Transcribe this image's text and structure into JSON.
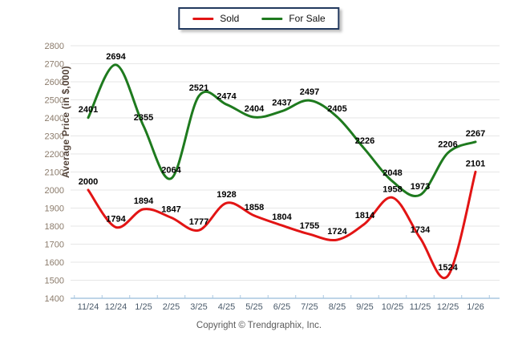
{
  "chart_data": {
    "type": "line",
    "title": "",
    "categories": [
      "11/24",
      "12/24",
      "1/25",
      "2/25",
      "3/25",
      "4/25",
      "5/25",
      "6/25",
      "7/25",
      "8/25",
      "9/25",
      "10/25",
      "11/25",
      "12/25",
      "1/26"
    ],
    "series": [
      {
        "name": "Sold",
        "color": "#e21414",
        "values": [
          2000,
          1794,
          1894,
          1847,
          1777,
          1928,
          1858,
          1804,
          1755,
          1724,
          1814,
          1958,
          1734,
          1524,
          2101
        ]
      },
      {
        "name": "For Sale",
        "color": "#1e7a1e",
        "values": [
          2401,
          2694,
          2355,
          2064,
          2521,
          2474,
          2404,
          2437,
          2497,
          2405,
          2226,
          2048,
          1973,
          2206,
          2267
        ]
      }
    ],
    "xlabel": "",
    "ylabel": "Average Price (in $,000)",
    "ylim": [
      1400,
      2800
    ],
    "ytick_step": 100,
    "grid": true,
    "smooth": true,
    "legend_position": "top-center",
    "data_labels": true
  },
  "colors": {
    "grid": "#e6e6e6",
    "axis_line": "#a9c7e0",
    "y_tick_label": "#8b7b6b",
    "x_tick_label": "#4a5a6a",
    "data_label": "#000000",
    "legend_border": "#22395e"
  },
  "footer": {
    "copyright": "Copyright © Trendgraphix, Inc."
  }
}
